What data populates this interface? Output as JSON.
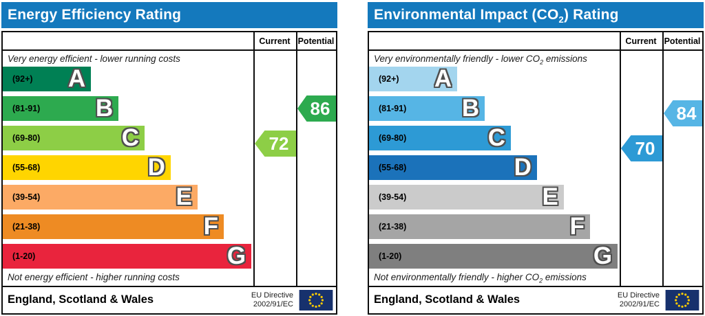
{
  "colors": {
    "header_bar": "#1479bd",
    "table_border": "#0d0d0d",
    "eu_flag_blue": "#17316d",
    "eu_flag_stars": "#ffcc00"
  },
  "footer": {
    "region": "England, Scotland & Wales",
    "directive_line1": "EU Directive",
    "directive_line2": "2002/91/EC"
  },
  "panels": [
    {
      "title": {
        "pre": "Energy Efficiency Rating",
        "sub": "",
        "post": ""
      },
      "columns": {
        "current": "Current",
        "potential": "Potential"
      },
      "top_label": {
        "pre": "Very energy efficient - lower running costs",
        "sub": "",
        "post": ""
      },
      "bottom_label": {
        "pre": "Not energy efficient - higher running costs",
        "sub": "",
        "post": ""
      },
      "bands": [
        {
          "letter": "A",
          "range": "(92+)",
          "min": 92,
          "max": 100,
          "color": "#008054",
          "width_pct": 35.2
        },
        {
          "letter": "B",
          "range": "(81-91)",
          "min": 81,
          "max": 91,
          "color": "#2daa4f",
          "width_pct": 46.2
        },
        {
          "letter": "C",
          "range": "(69-80)",
          "min": 69,
          "max": 80,
          "color": "#8dce46",
          "width_pct": 56.6
        },
        {
          "letter": "D",
          "range": "(55-68)",
          "min": 55,
          "max": 68,
          "color": "#ffd500",
          "width_pct": 67.0
        },
        {
          "letter": "E",
          "range": "(39-54)",
          "min": 39,
          "max": 54,
          "color": "#fcaa65",
          "width_pct": 77.7
        },
        {
          "letter": "F",
          "range": "(21-38)",
          "min": 21,
          "max": 38,
          "color": "#ee8b23",
          "width_pct": 88.2
        },
        {
          "letter": "G",
          "range": "(1-20)",
          "min": 1,
          "max": 20,
          "color": "#e9243d",
          "width_pct": 99.2
        }
      ],
      "current": {
        "value": 72,
        "color": "#8dce46"
      },
      "potential": {
        "value": 86,
        "color": "#2daa4f"
      }
    },
    {
      "title": {
        "pre": "Environmental Impact (CO",
        "sub": "2",
        "post": ") Rating"
      },
      "columns": {
        "current": "Current",
        "potential": "Potential"
      },
      "top_label": {
        "pre": "Very environmentally friendly - lower CO",
        "sub": "2",
        "post": " emissions"
      },
      "bottom_label": {
        "pre": "Not environmentally friendly - higher CO",
        "sub": "2",
        "post": " emissions"
      },
      "bands": [
        {
          "letter": "A",
          "range": "(92+)",
          "min": 92,
          "max": 100,
          "color": "#a3d5ee",
          "width_pct": 35.2
        },
        {
          "letter": "B",
          "range": "(81-91)",
          "min": 81,
          "max": 91,
          "color": "#56b5e5",
          "width_pct": 46.2
        },
        {
          "letter": "C",
          "range": "(69-80)",
          "min": 69,
          "max": 80,
          "color": "#2d9ad5",
          "width_pct": 56.6
        },
        {
          "letter": "D",
          "range": "(55-68)",
          "min": 55,
          "max": 68,
          "color": "#1b72ba",
          "width_pct": 67.0
        },
        {
          "letter": "E",
          "range": "(39-54)",
          "min": 39,
          "max": 54,
          "color": "#cbcbcb",
          "width_pct": 77.7
        },
        {
          "letter": "F",
          "range": "(21-38)",
          "min": 21,
          "max": 38,
          "color": "#a5a5a5",
          "width_pct": 88.2
        },
        {
          "letter": "G",
          "range": "(1-20)",
          "min": 1,
          "max": 20,
          "color": "#7f7f7f",
          "width_pct": 99.2
        }
      ],
      "current": {
        "value": 70,
        "color": "#2d9ad5"
      },
      "potential": {
        "value": 84,
        "color": "#56b5e5"
      }
    }
  ],
  "chart_data": [
    {
      "type": "bar",
      "title": "Energy Efficiency Rating",
      "annotation_top": "Very energy efficient - lower running costs",
      "annotation_bottom": "Not energy efficient - higher running costs",
      "categories": [
        "A",
        "B",
        "C",
        "D",
        "E",
        "F",
        "G"
      ],
      "band_ranges": [
        "92+",
        "81-91",
        "69-80",
        "55-68",
        "39-54",
        "21-38",
        "1-20"
      ],
      "bar_length_pct": [
        35.2,
        46.2,
        56.6,
        67.0,
        77.7,
        88.2,
        99.2
      ],
      "band_colors": [
        "#008054",
        "#2daa4f",
        "#8dce46",
        "#ffd500",
        "#fcaa65",
        "#ee8b23",
        "#e9243d"
      ],
      "series": [
        {
          "name": "Current",
          "values": [
            72
          ],
          "band": "C"
        },
        {
          "name": "Potential",
          "values": [
            86
          ],
          "band": "B"
        }
      ],
      "footer": "England, Scotland & Wales",
      "directive": "EU Directive 2002/91/EC",
      "legend_position": "none",
      "grid": false,
      "xlim": [
        1,
        100
      ]
    },
    {
      "type": "bar",
      "title": "Environmental Impact (CO2) Rating",
      "annotation_top": "Very environmentally friendly - lower CO2 emissions",
      "annotation_bottom": "Not environmentally friendly - higher CO2 emissions",
      "categories": [
        "A",
        "B",
        "C",
        "D",
        "E",
        "F",
        "G"
      ],
      "band_ranges": [
        "92+",
        "81-91",
        "69-80",
        "55-68",
        "39-54",
        "21-38",
        "1-20"
      ],
      "bar_length_pct": [
        35.2,
        46.2,
        56.6,
        67.0,
        77.7,
        88.2,
        99.2
      ],
      "band_colors": [
        "#a3d5ee",
        "#56b5e5",
        "#2d9ad5",
        "#1b72ba",
        "#cbcbcb",
        "#a5a5a5",
        "#7f7f7f"
      ],
      "series": [
        {
          "name": "Current",
          "values": [
            70
          ],
          "band": "C"
        },
        {
          "name": "Potential",
          "values": [
            84
          ],
          "band": "B"
        }
      ],
      "footer": "England, Scotland & Wales",
      "directive": "EU Directive 2002/91/EC",
      "legend_position": "none",
      "grid": false,
      "xlim": [
        1,
        100
      ]
    }
  ]
}
